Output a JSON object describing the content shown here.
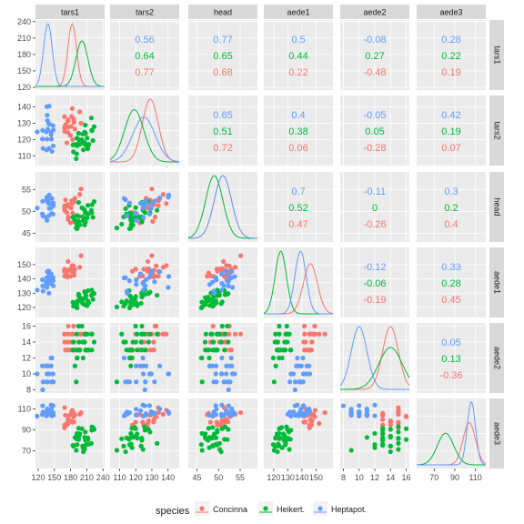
{
  "chart_data": {
    "type": "scatter-matrix",
    "variables": [
      "tars1",
      "tars2",
      "head",
      "aede1",
      "aede2",
      "aede3"
    ],
    "series": [
      {
        "name": "Concinna",
        "color": "#F8766D"
      },
      {
        "name": "Heikert.",
        "color": "#00BA38"
      },
      {
        "name": "Heptapot.",
        "color": "#619CFF"
      }
    ],
    "legend": {
      "title": "species",
      "placement": "bottom"
    },
    "axes": {
      "tars1": {
        "range": [
          115,
          243
        ],
        "ticks": [
          120,
          150,
          180,
          210,
          240
        ]
      },
      "tars2": {
        "range": [
          104,
          147
        ],
        "ticks": [
          110,
          120,
          130,
          140
        ]
      },
      "head": {
        "range": [
          43,
          59
        ],
        "ticks": [
          45,
          50,
          55
        ]
      },
      "aede1": {
        "range": [
          113,
          162
        ],
        "ticks": [
          120,
          130,
          140,
          150
        ]
      },
      "aede2": {
        "range": [
          7.6,
          16.4
        ],
        "ticks": [
          8,
          10,
          12,
          14,
          16
        ]
      },
      "aede3": {
        "range": [
          53,
          120
        ],
        "ticks": [
          70,
          90,
          110
        ]
      }
    },
    "correlations": [
      {
        "row": 0,
        "col": 1,
        "values": [
          "0.56",
          "0.64",
          "0.77"
        ]
      },
      {
        "row": 0,
        "col": 2,
        "values": [
          "0.77",
          "0.65",
          "0.68"
        ]
      },
      {
        "row": 0,
        "col": 3,
        "values": [
          "0.5",
          "0.44",
          "0.22"
        ]
      },
      {
        "row": 0,
        "col": 4,
        "values": [
          "-0.08",
          "0.27",
          "-0.48"
        ]
      },
      {
        "row": 0,
        "col": 5,
        "values": [
          "0.28",
          "0.22",
          "0.19"
        ]
      },
      {
        "row": 1,
        "col": 2,
        "values": [
          "0.65",
          "0.51",
          "0.72"
        ]
      },
      {
        "row": 1,
        "col": 3,
        "values": [
          "0.4",
          "0.38",
          "0.06"
        ]
      },
      {
        "row": 1,
        "col": 4,
        "values": [
          "-0.05",
          "0.05",
          "-0.28"
        ]
      },
      {
        "row": 1,
        "col": 5,
        "values": [
          "0.42",
          "0.19",
          "0.07"
        ]
      },
      {
        "row": 2,
        "col": 3,
        "values": [
          "0.7",
          "0.52",
          "0.47"
        ]
      },
      {
        "row": 2,
        "col": 4,
        "values": [
          "-0.11",
          "0",
          "-0.26"
        ]
      },
      {
        "row": 2,
        "col": 5,
        "values": [
          "0.3",
          "0.2",
          "0.4"
        ]
      },
      {
        "row": 3,
        "col": 4,
        "values": [
          "-0.12",
          "-0.06",
          "-0.19"
        ]
      },
      {
        "row": 3,
        "col": 5,
        "values": [
          "0.33",
          "0.28",
          "0.45"
        ]
      },
      {
        "row": 4,
        "col": 5,
        "values": [
          "0.05",
          "0.13",
          "-0.36"
        ]
      }
    ],
    "group_summary": {
      "Concinna": {
        "means": [
          183,
          129,
          51,
          146,
          14,
          104
        ],
        "sds": [
          8,
          5,
          2,
          5,
          1,
          6
        ]
      },
      "Heikert.": {
        "means": [
          201,
          119,
          49,
          125,
          14,
          81
        ],
        "sds": [
          11,
          6,
          2,
          4,
          1.5,
          8
        ]
      },
      "Heptapot.": {
        "means": [
          138,
          125,
          51,
          139,
          10,
          106
        ],
        "sds": [
          8,
          7,
          2,
          4,
          1,
          4
        ]
      }
    },
    "grid": true
  }
}
